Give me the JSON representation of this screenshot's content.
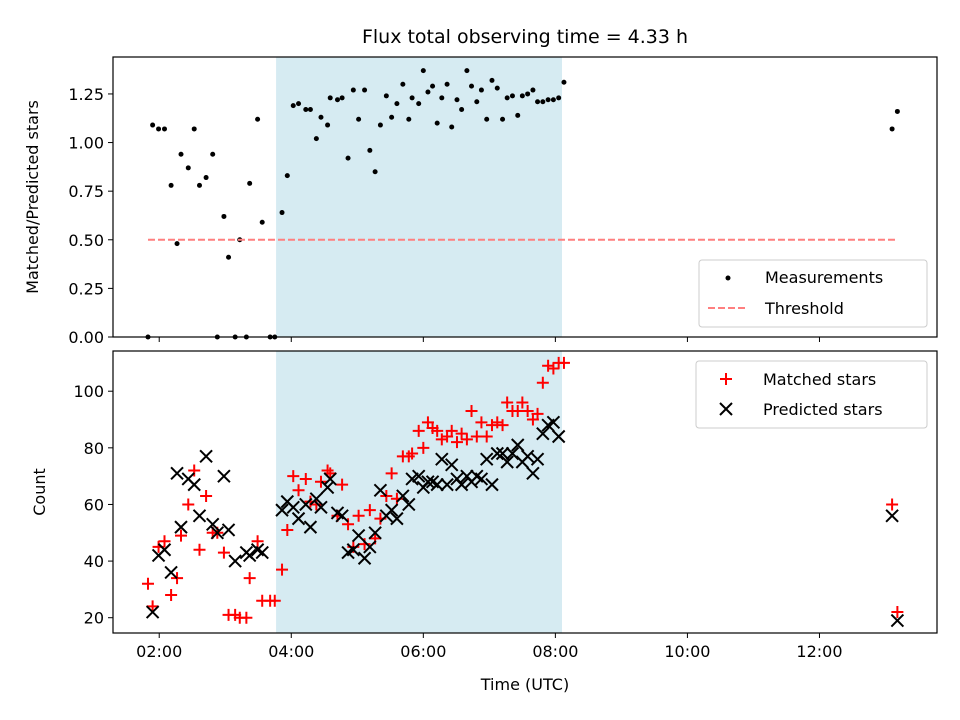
{
  "chart_data": {
    "type": "scatter",
    "title": "Flux total observing time = 4.33 h",
    "xlabel": "Time (UTC)",
    "x_unit": "hours UTC",
    "x_ticks": [
      2,
      4,
      6,
      8,
      10,
      12
    ],
    "x_tick_labels": [
      "02:00",
      "04:00",
      "06:00",
      "08:00",
      "10:00",
      "12:00"
    ],
    "xlim": [
      1.3,
      13.78
    ],
    "shaded_interval": [
      3.77,
      8.1
    ],
    "shade_color": "#add8e6",
    "panels": [
      {
        "ylabel": "Matched/Predicted stars",
        "ylim": [
          0,
          1.44
        ],
        "y_ticks": [
          0,
          0.25,
          0.5,
          0.75,
          1.0,
          1.25
        ],
        "y_tick_labels": [
          "0.00",
          "0.25",
          "0.50",
          "0.75",
          "1.00",
          "1.25"
        ],
        "legend_position": "lower-right",
        "series": [
          {
            "name": "Measurements",
            "marker": "dot",
            "color": "#000000",
            "points": [
              [
                1.83,
                0.0
              ],
              [
                1.9,
                1.09
              ],
              [
                1.99,
                1.07
              ],
              [
                2.08,
                1.07
              ],
              [
                2.18,
                0.78
              ],
              [
                2.27,
                0.48
              ],
              [
                2.33,
                0.94
              ],
              [
                2.44,
                0.87
              ],
              [
                2.53,
                1.07
              ],
              [
                2.61,
                0.78
              ],
              [
                2.71,
                0.82
              ],
              [
                2.81,
                0.94
              ],
              [
                2.88,
                0.0
              ],
              [
                2.98,
                0.62
              ],
              [
                3.05,
                0.41
              ],
              [
                3.15,
                0.0
              ],
              [
                3.22,
                0.5
              ],
              [
                3.32,
                0.0
              ],
              [
                3.37,
                0.79
              ],
              [
                3.49,
                1.12
              ],
              [
                3.56,
                0.59
              ],
              [
                3.68,
                0.0
              ],
              [
                3.75,
                0.0
              ],
              [
                3.86,
                0.64
              ],
              [
                3.94,
                0.83
              ],
              [
                4.03,
                1.19
              ],
              [
                4.11,
                1.2
              ],
              [
                4.22,
                1.17
              ],
              [
                4.29,
                1.17
              ],
              [
                4.38,
                1.02
              ],
              [
                4.45,
                1.13
              ],
              [
                4.55,
                1.09
              ],
              [
                4.59,
                1.23
              ],
              [
                4.7,
                1.22
              ],
              [
                4.77,
                1.23
              ],
              [
                4.86,
                0.92
              ],
              [
                4.94,
                1.27
              ],
              [
                5.02,
                1.12
              ],
              [
                5.11,
                1.27
              ],
              [
                5.19,
                0.96
              ],
              [
                5.27,
                0.85
              ],
              [
                5.35,
                1.09
              ],
              [
                5.44,
                1.24
              ],
              [
                5.52,
                1.13
              ],
              [
                5.6,
                1.2
              ],
              [
                5.69,
                1.3
              ],
              [
                5.78,
                1.12
              ],
              [
                5.83,
                1.23
              ],
              [
                5.93,
                1.2
              ],
              [
                6.0,
                1.37
              ],
              [
                6.07,
                1.26
              ],
              [
                6.14,
                1.29
              ],
              [
                6.21,
                1.1
              ],
              [
                6.28,
                1.23
              ],
              [
                6.36,
                1.3
              ],
              [
                6.43,
                1.08
              ],
              [
                6.51,
                1.22
              ],
              [
                6.58,
                1.17
              ],
              [
                6.66,
                1.37
              ],
              [
                6.73,
                1.29
              ],
              [
                6.81,
                1.21
              ],
              [
                6.88,
                1.27
              ],
              [
                6.96,
                1.12
              ],
              [
                7.04,
                1.32
              ],
              [
                7.12,
                1.28
              ],
              [
                7.2,
                1.12
              ],
              [
                7.27,
                1.23
              ],
              [
                7.35,
                1.24
              ],
              [
                7.43,
                1.14
              ],
              [
                7.5,
                1.24
              ],
              [
                7.58,
                1.25
              ],
              [
                7.66,
                1.27
              ],
              [
                7.73,
                1.21
              ],
              [
                7.81,
                1.21
              ],
              [
                7.89,
                1.22
              ],
              [
                7.97,
                1.22
              ],
              [
                8.05,
                1.23
              ],
              [
                8.13,
                1.31
              ],
              [
                13.1,
                1.07
              ],
              [
                13.18,
                1.16
              ]
            ]
          },
          {
            "name": "Threshold",
            "style": "dashed-line",
            "color": "#ff7f7f",
            "points": [
              [
                1.83,
                0.5
              ],
              [
                13.18,
                0.5
              ]
            ]
          }
        ]
      },
      {
        "ylabel": "Count",
        "ylim": [
          14.6,
          114.2
        ],
        "y_ticks": [
          20,
          40,
          60,
          80,
          100
        ],
        "y_tick_labels": [
          "20",
          "40",
          "60",
          "80",
          "100"
        ],
        "legend_position": "top-right",
        "series": [
          {
            "name": "Matched stars",
            "marker": "plus",
            "color": "#ff0000",
            "points": [
              [
                1.83,
                32
              ],
              [
                1.9,
                24
              ],
              [
                1.99,
                45
              ],
              [
                2.08,
                47
              ],
              [
                2.18,
                28
              ],
              [
                2.27,
                34
              ],
              [
                2.33,
                49
              ],
              [
                2.44,
                60
              ],
              [
                2.53,
                72
              ],
              [
                2.61,
                44
              ],
              [
                2.71,
                63
              ],
              [
                2.81,
                50
              ],
              [
                2.88,
                50
              ],
              [
                2.98,
                43
              ],
              [
                3.05,
                21
              ],
              [
                3.15,
                21
              ],
              [
                3.22,
                20
              ],
              [
                3.32,
                20
              ],
              [
                3.37,
                34
              ],
              [
                3.49,
                47
              ],
              [
                3.56,
                26
              ],
              [
                3.68,
                26
              ],
              [
                3.75,
                26
              ],
              [
                3.86,
                37
              ],
              [
                3.94,
                51
              ],
              [
                4.03,
                70
              ],
              [
                4.11,
                65
              ],
              [
                4.22,
                69
              ],
              [
                4.29,
                61
              ],
              [
                4.38,
                60
              ],
              [
                4.45,
                68
              ],
              [
                4.55,
                72
              ],
              [
                4.59,
                71
              ],
              [
                4.7,
                56
              ],
              [
                4.77,
                67
              ],
              [
                4.86,
                53
              ],
              [
                4.94,
                45
              ],
              [
                5.02,
                56
              ],
              [
                5.11,
                46
              ],
              [
                5.19,
                58
              ],
              [
                5.27,
                48
              ],
              [
                5.35,
                55
              ],
              [
                5.44,
                63
              ],
              [
                5.52,
                71
              ],
              [
                5.6,
                62
              ],
              [
                5.69,
                77
              ],
              [
                5.78,
                77
              ],
              [
                5.83,
                78
              ],
              [
                5.93,
                86
              ],
              [
                6.0,
                80
              ],
              [
                6.07,
                89
              ],
              [
                6.14,
                87
              ],
              [
                6.21,
                86
              ],
              [
                6.28,
                83
              ],
              [
                6.36,
                84
              ],
              [
                6.43,
                86
              ],
              [
                6.51,
                82
              ],
              [
                6.58,
                85
              ],
              [
                6.66,
                83
              ],
              [
                6.73,
                93
              ],
              [
                6.81,
                84
              ],
              [
                6.88,
                89
              ],
              [
                6.96,
                84
              ],
              [
                7.04,
                88
              ],
              [
                7.12,
                89
              ],
              [
                7.2,
                88
              ],
              [
                7.27,
                96
              ],
              [
                7.35,
                93
              ],
              [
                7.43,
                93
              ],
              [
                7.5,
                96
              ],
              [
                7.58,
                93
              ],
              [
                7.66,
                90
              ],
              [
                7.73,
                92
              ],
              [
                7.81,
                103
              ],
              [
                7.89,
                109
              ],
              [
                7.97,
                108
              ],
              [
                8.05,
                110
              ],
              [
                8.13,
                110
              ],
              [
                13.1,
                60
              ],
              [
                13.18,
                22
              ]
            ]
          },
          {
            "name": "Predicted stars",
            "marker": "x",
            "color": "#000000",
            "points": [
              [
                1.9,
                22
              ],
              [
                1.99,
                42
              ],
              [
                2.08,
                44
              ],
              [
                2.18,
                36
              ],
              [
                2.27,
                71
              ],
              [
                2.33,
                52
              ],
              [
                2.44,
                69
              ],
              [
                2.53,
                67
              ],
              [
                2.61,
                56
              ],
              [
                2.71,
                77
              ],
              [
                2.81,
                53
              ],
              [
                2.88,
                50
              ],
              [
                2.98,
                70
              ],
              [
                3.05,
                51
              ],
              [
                3.15,
                40
              ],
              [
                3.32,
                43
              ],
              [
                3.37,
                42
              ],
              [
                3.49,
                44
              ],
              [
                3.56,
                43
              ],
              [
                3.86,
                58
              ],
              [
                3.94,
                61
              ],
              [
                4.03,
                59
              ],
              [
                4.11,
                55
              ],
              [
                4.22,
                60
              ],
              [
                4.29,
                52
              ],
              [
                4.38,
                62
              ],
              [
                4.45,
                59
              ],
              [
                4.55,
                66
              ],
              [
                4.59,
                69
              ],
              [
                4.7,
                57
              ],
              [
                4.77,
                56
              ],
              [
                4.86,
                43
              ],
              [
                4.94,
                44
              ],
              [
                5.02,
                49
              ],
              [
                5.11,
                41
              ],
              [
                5.19,
                45
              ],
              [
                5.27,
                50
              ],
              [
                5.35,
                65
              ],
              [
                5.44,
                56
              ],
              [
                5.52,
                58
              ],
              [
                5.6,
                55
              ],
              [
                5.69,
                63
              ],
              [
                5.78,
                60
              ],
              [
                5.83,
                69
              ],
              [
                5.93,
                70
              ],
              [
                6.0,
                66
              ],
              [
                6.07,
                68
              ],
              [
                6.14,
                68
              ],
              [
                6.21,
                67
              ],
              [
                6.28,
                76
              ],
              [
                6.36,
                67
              ],
              [
                6.43,
                74
              ],
              [
                6.51,
                69
              ],
              [
                6.58,
                67
              ],
              [
                6.66,
                70
              ],
              [
                6.73,
                68
              ],
              [
                6.81,
                70
              ],
              [
                6.88,
                69
              ],
              [
                6.96,
                76
              ],
              [
                7.04,
                67
              ],
              [
                7.12,
                78
              ],
              [
                7.2,
                78
              ],
              [
                7.27,
                75
              ],
              [
                7.35,
                78
              ],
              [
                7.43,
                81
              ],
              [
                7.5,
                75
              ],
              [
                7.58,
                77
              ],
              [
                7.66,
                71
              ],
              [
                7.73,
                76
              ],
              [
                7.81,
                85
              ],
              [
                7.89,
                88
              ],
              [
                7.97,
                89
              ],
              [
                8.05,
                84
              ],
              [
                13.1,
                56
              ],
              [
                13.18,
                19
              ]
            ]
          }
        ]
      }
    ]
  }
}
